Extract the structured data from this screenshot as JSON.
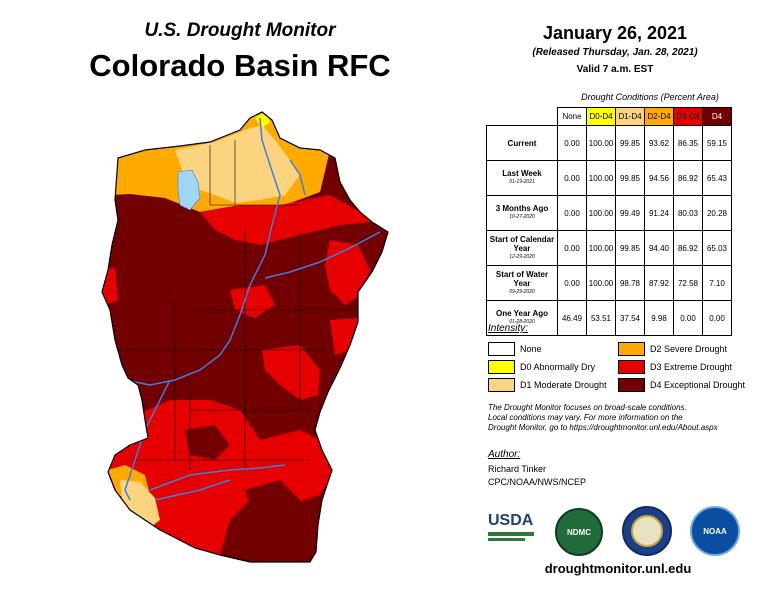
{
  "header": {
    "monitor_title": "U.S. Drought Monitor",
    "region_title": "Colorado Basin RFC",
    "date": "January 26, 2021",
    "released": "(Released Thursday, Jan. 28, 2021)",
    "valid": "Valid 7 a.m. EST"
  },
  "table": {
    "title": "Drought Conditions (Percent Area)",
    "columns": [
      "None",
      "D0-D4",
      "D1-D4",
      "D2-D4",
      "D3-D4",
      "D4"
    ],
    "column_colors": [
      "#ffffff",
      "#ffff00",
      "#fcd37f",
      "#ffaa00",
      "#e60000",
      "#730000"
    ],
    "rows": [
      {
        "label": "Current",
        "date": "",
        "values": [
          "0.00",
          "100.00",
          "99.85",
          "93.62",
          "86.35",
          "59.15"
        ]
      },
      {
        "label": "Last Week",
        "date": "01-19-2021",
        "values": [
          "0.00",
          "100.00",
          "99.85",
          "94.56",
          "86.92",
          "65.43"
        ]
      },
      {
        "label": "3 Months Ago",
        "date": "10-27-2020",
        "values": [
          "0.00",
          "100.00",
          "99.49",
          "91.24",
          "80.03",
          "20.28"
        ]
      },
      {
        "label": "Start of Calendar Year",
        "date": "12-29-2020",
        "values": [
          "0.00",
          "100.00",
          "99.85",
          "94.40",
          "86.92",
          "65.03"
        ]
      },
      {
        "label": "Start of Water Year",
        "date": "09-29-2020",
        "values": [
          "0.00",
          "100.00",
          "98.78",
          "87.92",
          "72.58",
          "7.10"
        ]
      },
      {
        "label": "One Year Ago",
        "date": "01-28-2020",
        "values": [
          "46.49",
          "53.51",
          "37.54",
          "9.98",
          "0.00",
          "0.00"
        ]
      }
    ]
  },
  "legend": {
    "title": "Intensity:",
    "items": [
      {
        "label": "None",
        "color": "#ffffff"
      },
      {
        "label": "D0 Abnormally Dry",
        "color": "#ffff00"
      },
      {
        "label": "D1 Moderate Drought",
        "color": "#fcd37f"
      },
      {
        "label": "D2 Severe Drought",
        "color": "#ffaa00"
      },
      {
        "label": "D3 Extreme Drought",
        "color": "#e60000"
      },
      {
        "label": "D4 Exceptional Drought",
        "color": "#730000"
      }
    ]
  },
  "note": {
    "line1": "The Drought Monitor focuses on broad-scale conditions.",
    "line2": "Local conditions may vary. For more information on the",
    "line3": "Drought Monitor, go to https://droughtmonitor.unl.edu/About.aspx"
  },
  "author": {
    "title": "Author:",
    "name": "Richard Tinker",
    "org": "CPC/NOAA/NWS/NCEP"
  },
  "logos": {
    "usda": "USDA",
    "ndmc": "NDMC",
    "noaa": "NOAA"
  },
  "website": "droughtmonitor.unl.edu",
  "map_colors": {
    "d1": "#fcd37f",
    "d2": "#ffaa00",
    "d3": "#e60000",
    "d4": "#730000",
    "water": "#9fd6f2",
    "river": "#3d7fe0"
  }
}
